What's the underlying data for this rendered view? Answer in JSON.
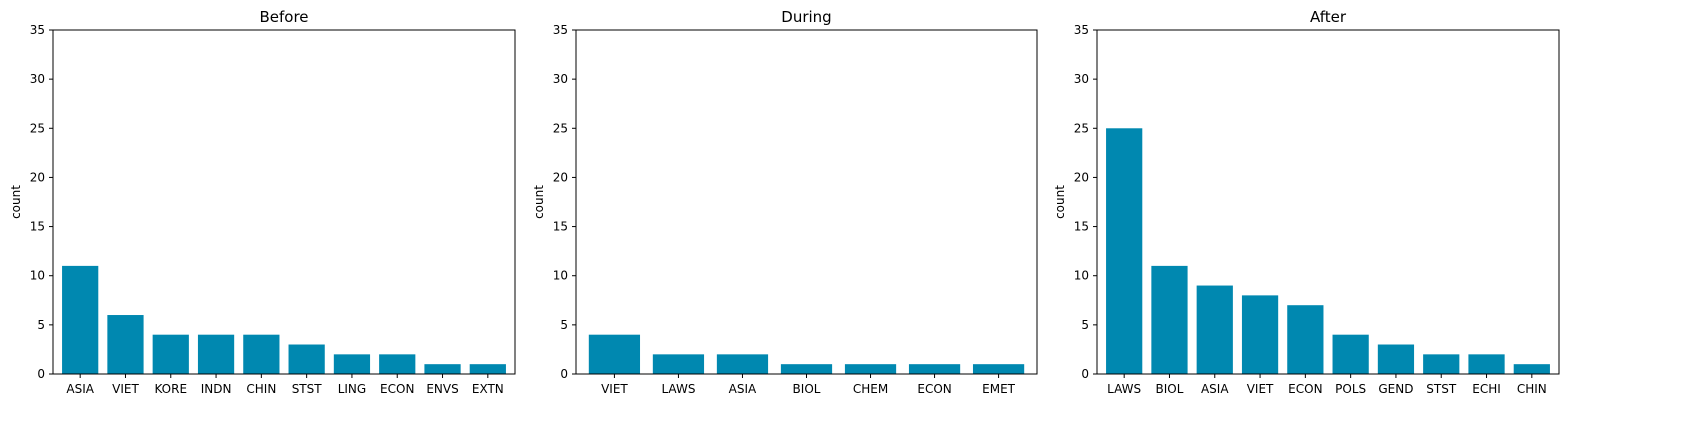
{
  "colors": {
    "bar": "#0088b0",
    "axis": "#000000",
    "background": "#ffffff"
  },
  "chart_data": [
    {
      "type": "bar",
      "title": "Before",
      "xlabel": "",
      "ylabel": "count",
      "ylim": [
        0,
        35
      ],
      "yticks": [
        0,
        5,
        10,
        15,
        20,
        25,
        30,
        35
      ],
      "grid": false,
      "categories": [
        "ASIA",
        "VIET",
        "KORE",
        "INDN",
        "CHIN",
        "STST",
        "LING",
        "ECON",
        "ENVS",
        "EXTN"
      ],
      "values": [
        11,
        6,
        4,
        4,
        4,
        3,
        2,
        2,
        1,
        1
      ]
    },
    {
      "type": "bar",
      "title": "During",
      "xlabel": "",
      "ylabel": "count",
      "ylim": [
        0,
        35
      ],
      "yticks": [
        0,
        5,
        10,
        15,
        20,
        25,
        30,
        35
      ],
      "grid": false,
      "categories": [
        "VIET",
        "LAWS",
        "ASIA",
        "BIOL",
        "CHEM",
        "ECON",
        "EMET"
      ],
      "values": [
        4,
        2,
        2,
        1,
        1,
        1,
        1
      ]
    },
    {
      "type": "bar",
      "title": "After",
      "xlabel": "",
      "ylabel": "count",
      "ylim": [
        0,
        35
      ],
      "yticks": [
        0,
        5,
        10,
        15,
        20,
        25,
        30,
        35
      ],
      "grid": false,
      "categories": [
        "LAWS",
        "BIOL",
        "ASIA",
        "VIET",
        "ECON",
        "POLS",
        "GEND",
        "STST",
        "ECHI",
        "CHIN"
      ],
      "values": [
        25,
        11,
        9,
        8,
        7,
        4,
        3,
        2,
        2,
        1
      ]
    }
  ]
}
